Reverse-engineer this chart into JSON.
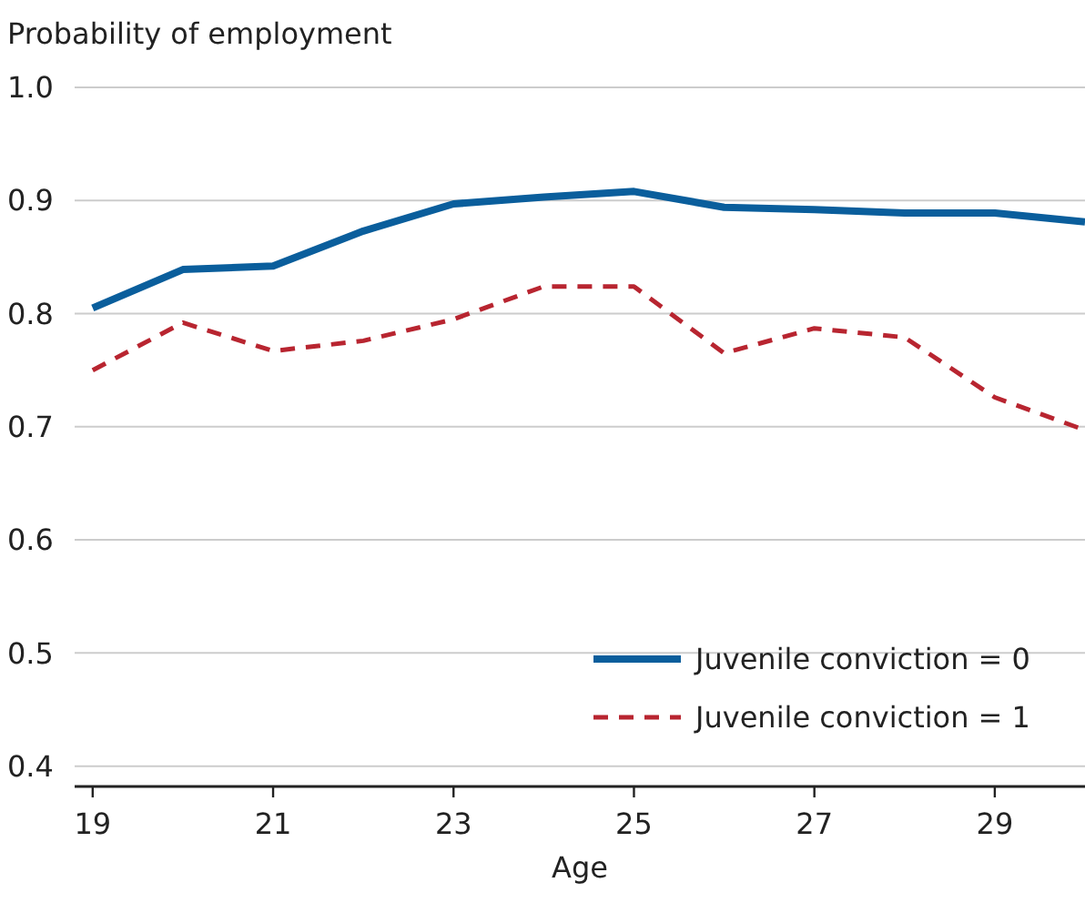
{
  "chart_data": {
    "type": "line",
    "ylabel": "Probability of employment",
    "xlabel": "Age",
    "x": [
      19,
      20,
      21,
      22,
      23,
      24,
      25,
      26,
      27,
      28,
      29,
      30
    ],
    "series": [
      {
        "name": "Juvenile conviction = 0",
        "color": "#0a5e9c",
        "line_style": "solid",
        "values": [
          0.805,
          0.839,
          0.842,
          0.873,
          0.897,
          0.903,
          0.908,
          0.894,
          0.892,
          0.889,
          0.889,
          0.881
        ]
      },
      {
        "name": "Juvenile conviction = 1",
        "color": "#b82530",
        "line_style": "dashed",
        "values": [
          0.75,
          0.792,
          0.767,
          0.776,
          0.795,
          0.824,
          0.824,
          0.765,
          0.787,
          0.779,
          0.726,
          0.697
        ]
      }
    ],
    "xlim": [
      18.8,
      30
    ],
    "xticks": [
      19,
      21,
      23,
      25,
      27,
      29
    ],
    "ylim": [
      0.382,
      1.0
    ],
    "yticks": [
      {
        "value": 0.4,
        "label": "0.4"
      },
      {
        "value": 0.5,
        "label": "0.5"
      },
      {
        "value": 0.6,
        "label": "0.6"
      },
      {
        "value": 0.7,
        "label": "0.7"
      },
      {
        "value": 0.8,
        "label": "0.8"
      },
      {
        "value": 0.9,
        "label": "0.9"
      },
      {
        "value": 1.0,
        "label": "1.0"
      }
    ],
    "grid": "y",
    "legend": "bottom right",
    "marker": "none"
  }
}
